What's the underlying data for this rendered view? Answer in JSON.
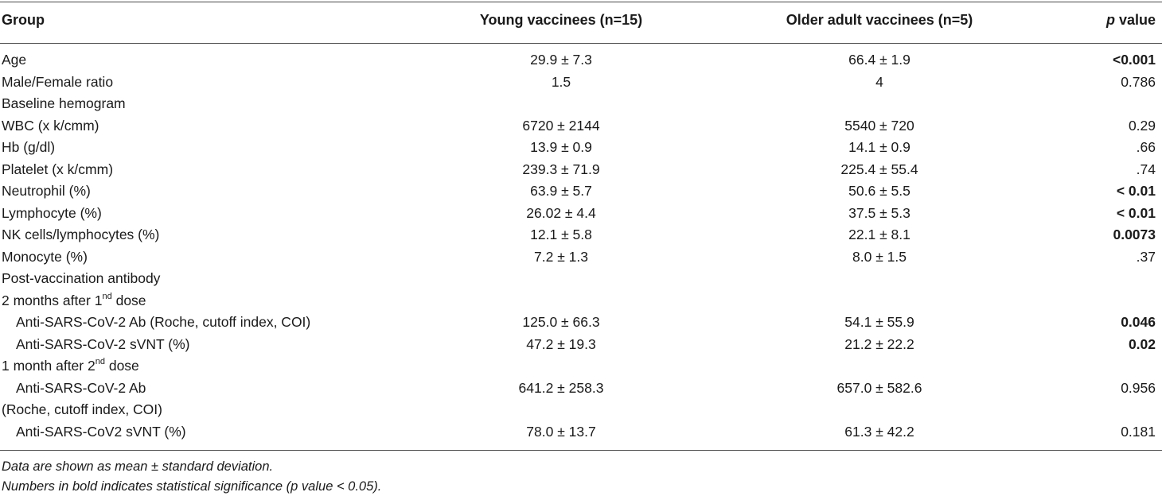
{
  "header": {
    "group": "Group",
    "young": "Young vaccinees (n=15)",
    "older": "Older adult vaccinees (n=5)",
    "p_italic": "p",
    "p_rest": " value"
  },
  "rows": [
    {
      "label": "Age",
      "young": "29.9 ± 7.3",
      "older": "66.4 ± 1.9",
      "p": "<0.001",
      "p_bold": true
    },
    {
      "label": "Male/Female ratio",
      "young": "1.5",
      "older": "4",
      "p": "0.786"
    },
    {
      "label": "Baseline hemogram",
      "young": "",
      "older": "",
      "p": ""
    },
    {
      "label": "WBC (x k/cmm)",
      "young": "6720 ± 2144",
      "older": "5540 ± 720",
      "p": "0.29"
    },
    {
      "label": "Hb (g/dl)",
      "young": "13.9 ± 0.9",
      "older": "14.1 ± 0.9",
      "p": ".66"
    },
    {
      "label": "Platelet (x k/cmm)",
      "young": "239.3 ± 71.9",
      "older": "225.4 ± 55.4",
      "p": ".74"
    },
    {
      "label": "Neutrophil (%)",
      "young": "63.9 ± 5.7",
      "older": "50.6 ± 5.5",
      "p": "< 0.01",
      "p_bold": true
    },
    {
      "label": "Lymphocyte (%)",
      "young": "26.02 ± 4.4",
      "older": "37.5 ± 5.3",
      "p": "< 0.01",
      "p_bold": true
    },
    {
      "label": "NK cells/lymphocytes (%)",
      "young": "12.1 ± 5.8",
      "older": "22.1 ± 8.1",
      "p": "0.0073",
      "p_bold": true
    },
    {
      "label": "Monocyte (%)",
      "young": "7.2 ± 1.3",
      "older": "8.0 ± 1.5",
      "p": ".37"
    },
    {
      "label": "Post-vaccination antibody",
      "young": "",
      "older": "",
      "p": ""
    },
    {
      "label": "2 months after 1",
      "sup": "nd",
      "label_after": " dose",
      "young": "",
      "older": "",
      "p": ""
    },
    {
      "label": "Anti-SARS-CoV-2 Ab (Roche, cutoff index, COI)",
      "indent": true,
      "young": "125.0 ± 66.3",
      "older": "54.1 ± 55.9",
      "p": "0.046",
      "p_bold": true
    },
    {
      "label": "Anti-SARS-CoV-2 sVNT (%)",
      "indent": true,
      "young": "47.2 ± 19.3",
      "older": "21.2 ± 22.2",
      "p": "0.02",
      "p_bold": true
    },
    {
      "label": "1 month after 2",
      "sup": "nd",
      "label_after": " dose",
      "young": "",
      "older": "",
      "p": ""
    },
    {
      "label": "Anti-SARS-CoV-2 Ab",
      "indent": true,
      "young": "641.2 ± 258.3",
      "older": "657.0 ± 582.6",
      "p": "0.956"
    },
    {
      "label": "(Roche, cutoff index, COI)",
      "young": "",
      "older": "",
      "p": ""
    },
    {
      "label": "Anti-SARS-CoV2 sVNT (%)",
      "indent": true,
      "young": "78.0 ± 13.7",
      "older": "61.3 ± 42.2",
      "p": "0.181"
    }
  ],
  "notes": [
    "Data are shown as mean ± standard deviation.",
    "Numbers in bold indicates statistical significance (p value < 0.05)."
  ]
}
